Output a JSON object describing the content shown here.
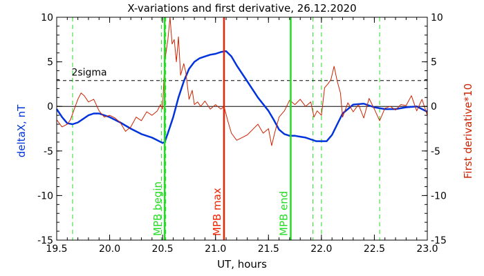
{
  "chart_data": {
    "type": "line",
    "title": "X-variations and first derivative, 26.12.2020",
    "xlabel": "UT, hours",
    "ylabel_left": "deltaX, nT",
    "ylabel_right": "First derivative*10",
    "xlim": [
      19.5,
      23.0
    ],
    "ylim": [
      -15,
      10
    ],
    "xticks": [
      "19.5",
      "20.0",
      "20.5",
      "21.0",
      "21.5",
      "22.0",
      "22.5",
      "23.0"
    ],
    "yticks": [
      "10",
      "5",
      "0",
      "-5",
      "-10",
      "-15"
    ],
    "grid": false,
    "threshold": {
      "label": "2sigma",
      "y": 2.9
    },
    "zero_line": 0,
    "colors": {
      "deltaX": "#0033dd",
      "derivative": "#cc2200",
      "mpb_begin_end": "#22dd22",
      "mpb_max": "#ee2200",
      "threshold": "#000000"
    },
    "vertical_lines": [
      {
        "x": 20.52,
        "label": "MPB begin",
        "color": "#22dd22",
        "style": "solid"
      },
      {
        "x": 21.08,
        "label": "MPB max",
        "color": "#ee2200",
        "style": "solid"
      },
      {
        "x": 21.71,
        "label": "MPB end",
        "color": "#22dd22",
        "style": "solid"
      }
    ],
    "dashed_markers": [
      19.65,
      20.49,
      20.53,
      21.92,
      22.0,
      22.55
    ],
    "series": [
      {
        "name": "deltaX",
        "color": "#0033dd",
        "x": [
          19.5,
          19.55,
          19.6,
          19.65,
          19.7,
          19.75,
          19.8,
          19.85,
          19.9,
          20.0,
          20.1,
          20.2,
          20.3,
          20.4,
          20.45,
          20.5,
          20.52,
          20.55,
          20.6,
          20.65,
          20.7,
          20.75,
          20.8,
          20.85,
          20.9,
          20.95,
          21.0,
          21.05,
          21.1,
          21.15,
          21.2,
          21.3,
          21.4,
          21.5,
          21.55,
          21.6,
          21.65,
          21.7,
          21.75,
          21.8,
          21.85,
          21.9,
          21.95,
          22.0,
          22.05,
          22.1,
          22.15,
          22.2,
          22.3,
          22.4,
          22.5,
          22.6,
          22.7,
          22.8,
          22.9,
          23.0
        ],
        "values": [
          -0.3,
          -1.2,
          -1.9,
          -2.0,
          -1.8,
          -1.4,
          -1.0,
          -0.8,
          -0.8,
          -1.2,
          -1.8,
          -2.5,
          -3.1,
          -3.5,
          -3.8,
          -4.1,
          -4.0,
          -3.0,
          -1.2,
          1.0,
          2.8,
          4.2,
          5.0,
          5.4,
          5.6,
          5.8,
          5.9,
          6.1,
          6.2,
          5.6,
          4.6,
          2.8,
          1.0,
          -0.5,
          -1.5,
          -2.6,
          -3.1,
          -3.3,
          -3.3,
          -3.4,
          -3.5,
          -3.7,
          -3.9,
          -3.9,
          -3.9,
          -3.2,
          -2.0,
          -0.8,
          0.2,
          0.3,
          -0.1,
          -0.3,
          -0.3,
          -0.1,
          0.0,
          -0.6
        ]
      },
      {
        "name": "First derivative*10",
        "color": "#cc2200",
        "x": [
          19.5,
          19.55,
          19.6,
          19.63,
          19.66,
          19.7,
          19.73,
          19.76,
          19.8,
          19.85,
          19.9,
          19.95,
          20.0,
          20.05,
          20.1,
          20.15,
          20.2,
          20.25,
          20.3,
          20.35,
          20.4,
          20.45,
          20.48,
          20.5,
          20.52,
          20.55,
          20.57,
          20.59,
          20.61,
          20.63,
          20.65,
          20.67,
          20.7,
          20.72,
          20.75,
          20.78,
          20.8,
          20.83,
          20.86,
          20.9,
          20.95,
          21.0,
          21.05,
          21.08,
          21.12,
          21.15,
          21.2,
          21.25,
          21.3,
          21.35,
          21.4,
          21.45,
          21.5,
          21.53,
          21.56,
          21.6,
          21.65,
          21.7,
          21.75,
          21.8,
          21.85,
          21.9,
          21.93,
          21.96,
          22.0,
          22.03,
          22.06,
          22.09,
          22.12,
          22.15,
          22.18,
          22.2,
          22.25,
          22.3,
          22.35,
          22.4,
          22.45,
          22.5,
          22.55,
          22.6,
          22.65,
          22.7,
          22.75,
          22.8,
          22.85,
          22.9,
          22.95,
          23.0
        ],
        "values": [
          -1.5,
          -2.3,
          -2.0,
          -1.5,
          -0.5,
          0.8,
          1.5,
          1.2,
          0.5,
          0.8,
          -0.5,
          -1.2,
          -1.0,
          -1.3,
          -1.8,
          -2.8,
          -2.3,
          -1.2,
          -1.6,
          -0.6,
          -1.0,
          -0.5,
          0.2,
          -0.3,
          5.0,
          7.5,
          10.0,
          7.0,
          7.5,
          5.0,
          7.8,
          3.5,
          4.8,
          3.8,
          0.8,
          1.8,
          0.2,
          0.5,
          0.0,
          0.6,
          -0.3,
          0.2,
          -0.3,
          0.0,
          -1.8,
          -3.0,
          -3.8,
          -3.5,
          -3.2,
          -2.6,
          -2.0,
          -3.0,
          -2.5,
          -4.4,
          -2.9,
          -1.2,
          -0.5,
          0.7,
          0.2,
          0.8,
          0.0,
          0.5,
          -1.2,
          -0.5,
          -1.0,
          2.1,
          2.5,
          3.0,
          4.5,
          2.8,
          1.5,
          -1.2,
          0.4,
          -0.6,
          0.2,
          -1.3,
          0.9,
          -0.3,
          -1.6,
          -0.2,
          0.0,
          -0.4,
          0.2,
          0.1,
          1.2,
          -0.5,
          0.8,
          -1.0
        ]
      }
    ]
  }
}
